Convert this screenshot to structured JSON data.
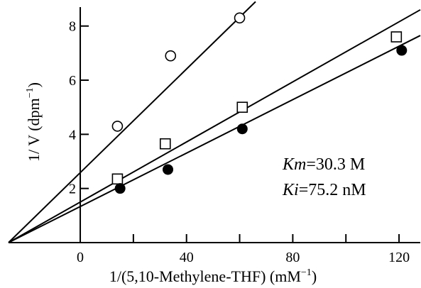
{
  "chart_data": {
    "type": "scatter",
    "title": "",
    "xlabel": "1/(5,10-Methylene-THF) (mM",
    "xlabel_sup": "−1",
    "xlabel_tail": ")",
    "ylabel": "1/ V (dpm",
    "ylabel_sup": "−1",
    "ylabel_tail": ")",
    "xlim": [
      -27,
      128
    ],
    "ylim": [
      0,
      8.7
    ],
    "x_ticks": [
      0,
      40,
      80,
      120
    ],
    "x_minor_ticks": [
      20,
      60,
      100
    ],
    "y_ticks": [
      2,
      4,
      6,
      8
    ],
    "grid": false,
    "legend": "none",
    "series": [
      {
        "marker": "open-circle",
        "points": [
          [
            14,
            4.3
          ],
          [
            34,
            6.9
          ],
          [
            60,
            8.3
          ]
        ],
        "fit_line": {
          "x_start": -27,
          "y_start": 0,
          "x_end": 66,
          "y_end": 8.9
        }
      },
      {
        "marker": "open-square",
        "points": [
          [
            14,
            2.35
          ],
          [
            32,
            3.65
          ],
          [
            61,
            5.0
          ],
          [
            119,
            7.6
          ]
        ],
        "fit_line": {
          "x_start": -27,
          "y_start": 0,
          "x_end": 128,
          "y_end": 8.6
        }
      },
      {
        "marker": "filled-circle",
        "points": [
          [
            15,
            2.0
          ],
          [
            33,
            2.7
          ],
          [
            61,
            4.2
          ],
          [
            121,
            7.1
          ]
        ],
        "fit_line": {
          "x_start": -27,
          "y_start": 0,
          "x_end": 128,
          "y_end": 7.65
        }
      }
    ],
    "annotations": [
      {
        "italic": "Km",
        "text": "=30.3 M"
      },
      {
        "italic": "Ki",
        "text": "=75.2 nM"
      }
    ]
  }
}
